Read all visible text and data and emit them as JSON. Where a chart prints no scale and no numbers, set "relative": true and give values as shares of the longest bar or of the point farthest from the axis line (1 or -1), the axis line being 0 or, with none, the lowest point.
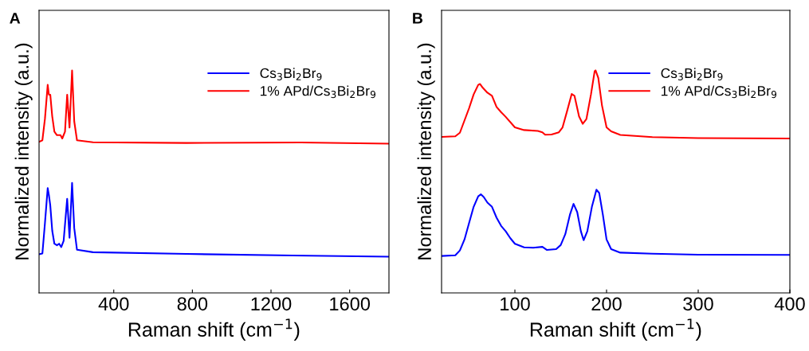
{
  "chart_data": [
    {
      "type": "line",
      "title": "A",
      "xlabel": "Raman shift (cm$^{−1}$)",
      "ylabel": "Normalized intensity (a.u.)",
      "relative": true,
      "xlim": [
        20,
        1800
      ],
      "xticks": [
        400,
        800,
        1200,
        1600
      ],
      "tick_labels": "x",
      "legend": "top right",
      "grid": false,
      "series": [
        {
          "name": "Cs$_{3}$Bi$_{2}$Br$_{9}$",
          "color": "#0000ff",
          "x": [
            23,
            37,
            50,
            64,
            70,
            77,
            87,
            98,
            111,
            122,
            133,
            145,
            163,
            175,
            188,
            199,
            213,
            294,
            769,
            1311,
            1800
          ],
          "values": [
            0.174,
            0.177,
            0.314,
            0.471,
            0.44,
            0.394,
            0.28,
            0.221,
            0.214,
            0.221,
            0.206,
            0.234,
            0.423,
            0.248,
            0.494,
            0.291,
            0.194,
            0.183,
            0.175,
            0.168,
            0.163
          ]
        },
        {
          "name": "1% APd/Cs$_{3}$Bi$_{2}$Br$_{9}$",
          "color": "#ff0000",
          "x": [
            23,
            37,
            50,
            64,
            70,
            77,
            87,
            98,
            111,
            129,
            138,
            152,
            163,
            175,
            188,
            199,
            213,
            294,
            769,
            1352,
            1800
          ],
          "values": [
            0.68,
            0.686,
            0.783,
            0.935,
            0.891,
            0.891,
            0.794,
            0.725,
            0.709,
            0.709,
            0.694,
            0.725,
            0.891,
            0.743,
            1.0,
            0.771,
            0.686,
            0.677,
            0.674,
            0.676,
            0.671
          ]
        }
      ]
    },
    {
      "type": "line",
      "title": "B",
      "xlabel": "Raman shift (cm$^{−1}$)",
      "ylabel": "Normalized intensity (a.u.)",
      "relative": true,
      "xlim": [
        20,
        400
      ],
      "xticks": [
        100,
        200,
        300,
        400
      ],
      "tick_labels": "x",
      "legend": "top right",
      "grid": false,
      "series": [
        {
          "name": "Cs$_{3}$Bi$_{2}$Br$_{9}$",
          "color": "#0000ff",
          "x": [
            20,
            35,
            40,
            45,
            50,
            55,
            60,
            63,
            66,
            70,
            75,
            80,
            85,
            90,
            95,
            100,
            110,
            120,
            130,
            135,
            145,
            150,
            155,
            160,
            164,
            168,
            172,
            175,
            179,
            184,
            189,
            192,
            196,
            200,
            205,
            215,
            250,
            300,
            400
          ],
          "values": [
            0.166,
            0.169,
            0.191,
            0.24,
            0.314,
            0.387,
            0.434,
            0.443,
            0.431,
            0.406,
            0.387,
            0.338,
            0.301,
            0.277,
            0.246,
            0.221,
            0.205,
            0.203,
            0.207,
            0.193,
            0.197,
            0.215,
            0.264,
            0.351,
            0.4,
            0.363,
            0.277,
            0.237,
            0.277,
            0.387,
            0.464,
            0.449,
            0.351,
            0.24,
            0.197,
            0.181,
            0.176,
            0.172,
            0.171
          ]
        },
        {
          "name": "1% APd/Cs$_{3}$Bi$_{2}$Br$_{9}$",
          "color": "#ff0000",
          "x": [
            20,
            35,
            40,
            50,
            55,
            60,
            62,
            65,
            70,
            75,
            80,
            85,
            90,
            100,
            110,
            125,
            130,
            133,
            140,
            148,
            152,
            157,
            162,
            165,
            170,
            174,
            178,
            183,
            187,
            188,
            191,
            195,
            200,
            205,
            215,
            250,
            300,
            400
          ],
          "values": [
            0.701,
            0.704,
            0.72,
            0.83,
            0.892,
            0.935,
            0.939,
            0.922,
            0.9,
            0.886,
            0.836,
            0.812,
            0.791,
            0.744,
            0.732,
            0.728,
            0.722,
            0.711,
            0.712,
            0.722,
            0.744,
            0.818,
            0.894,
            0.886,
            0.793,
            0.76,
            0.781,
            0.892,
            0.996,
            1.0,
            0.966,
            0.843,
            0.744,
            0.726,
            0.71,
            0.7,
            0.696,
            0.694
          ]
        }
      ]
    }
  ]
}
